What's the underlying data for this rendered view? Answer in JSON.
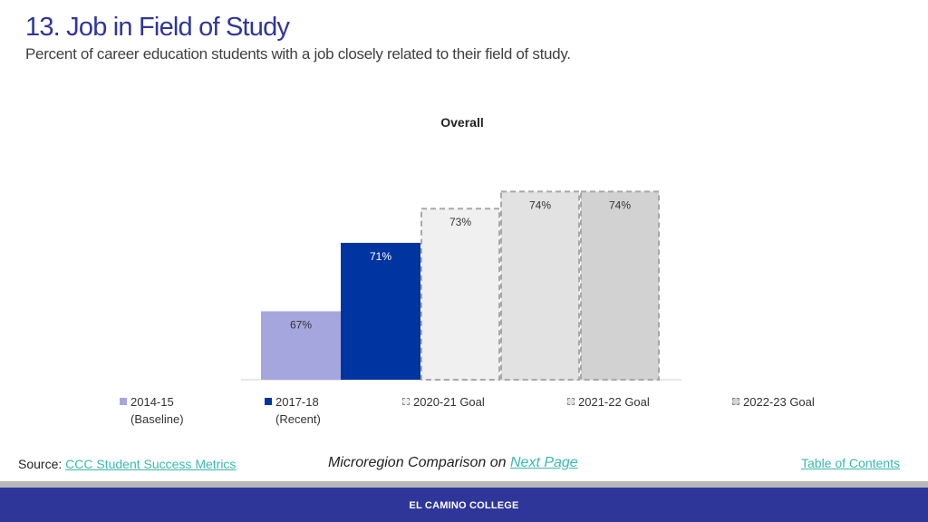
{
  "header": {
    "title": "13. Job in Field of Study",
    "subtitle": "Percent of career education students with a job closely related to their field of study."
  },
  "chart_data": {
    "type": "bar",
    "title": "Overall",
    "categories": [
      "2014-15 (Baseline)",
      "2017-18 (Recent)",
      "2020-21 Goal",
      "2021-22 Goal",
      "2022-23 Goal"
    ],
    "values": [
      67,
      71,
      73,
      74,
      74
    ],
    "data_labels": [
      "67%",
      "71%",
      "73%",
      "74%",
      "74%"
    ],
    "ylim": [
      63,
      74.6
    ],
    "grid": false,
    "legend_position": "bottom",
    "colors": [
      "#a6a6de",
      "#0034a0",
      "#f0f0f0",
      "#e2e2e2",
      "#d2d2d2"
    ],
    "dashed": [
      false,
      false,
      true,
      true,
      true
    ]
  },
  "legend": [
    {
      "line1": "2014-15",
      "line2": "(Baseline)",
      "color": "#a6a6de"
    },
    {
      "line1": "2017-18",
      "line2": "(Recent)",
      "color": "#0034a0"
    },
    {
      "line1": "2020-21 Goal",
      "line2": "",
      "color": "#f0f0f0"
    },
    {
      "line1": "2021-22 Goal",
      "line2": "",
      "color": "#e2e2e2"
    },
    {
      "line1": "2022-23 Goal",
      "line2": "",
      "color": "#d2d2d2"
    }
  ],
  "footer": {
    "source_label": "Source:",
    "source_link": "CCC Student Success Metrics",
    "comparison_text": "Microregion Comparison on",
    "next_page_link": "Next Page",
    "toc_link": "Table of Contents",
    "brand": "EL CAMINO COLLEGE"
  }
}
